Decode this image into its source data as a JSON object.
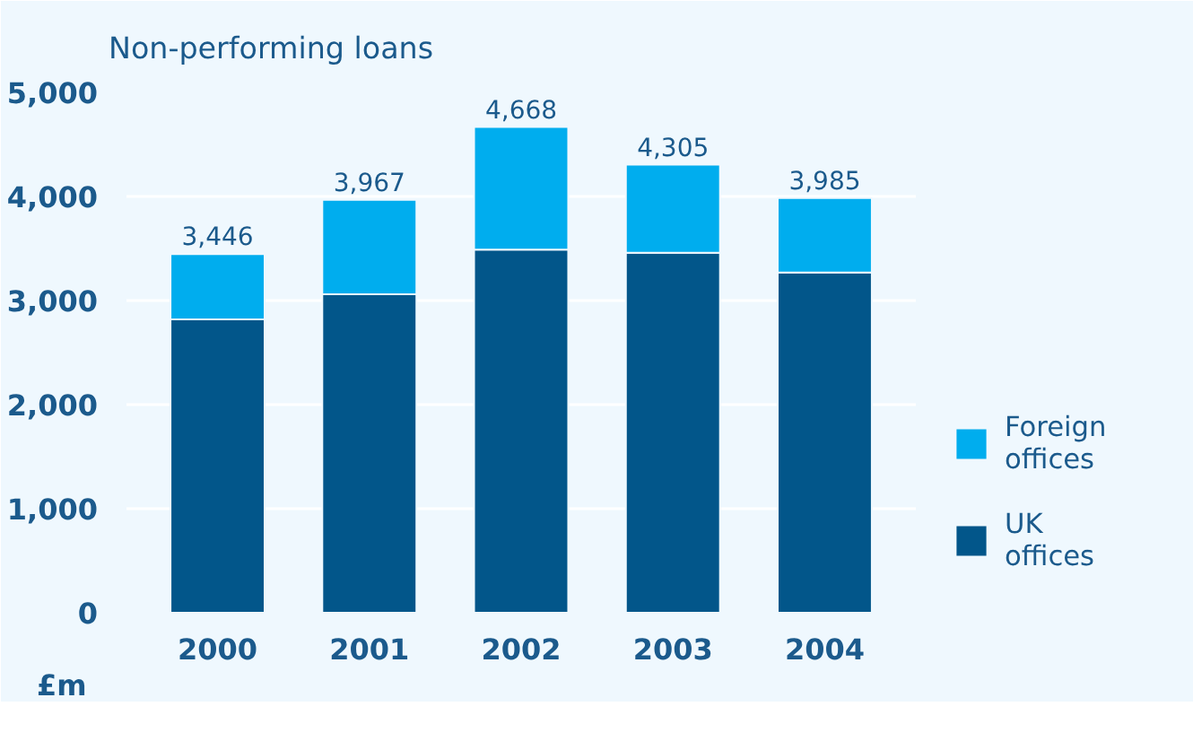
{
  "chart_data": {
    "type": "bar",
    "title": "Non-performing loans",
    "ylabel": "£m",
    "categories": [
      "2000",
      "2001",
      "2002",
      "2003",
      "2004"
    ],
    "stacked": true,
    "series": [
      {
        "name": "UK offices",
        "color": "#02568a",
        "values": [
          2820,
          3060,
          3490,
          3460,
          3270
        ]
      },
      {
        "name": "Foreign offices",
        "color": "#00adee",
        "values": [
          626,
          907,
          1178,
          845,
          715
        ]
      }
    ],
    "totals": [
      "3,446",
      "3,967",
      "4,668",
      "4,305",
      "3,985"
    ],
    "ylim": [
      0,
      5000
    ],
    "yticks": [
      0,
      {
        "value": 1000,
        "label": "1,000"
      },
      {
        "value": 2000,
        "label": "2,000"
      },
      {
        "value": 3000,
        "label": "3,000"
      },
      {
        "value": 4000,
        "label": "4,000"
      },
      {
        "value": 5000,
        "label": "5,000"
      }
    ],
    "grid": "y",
    "legend": "bottom right"
  }
}
